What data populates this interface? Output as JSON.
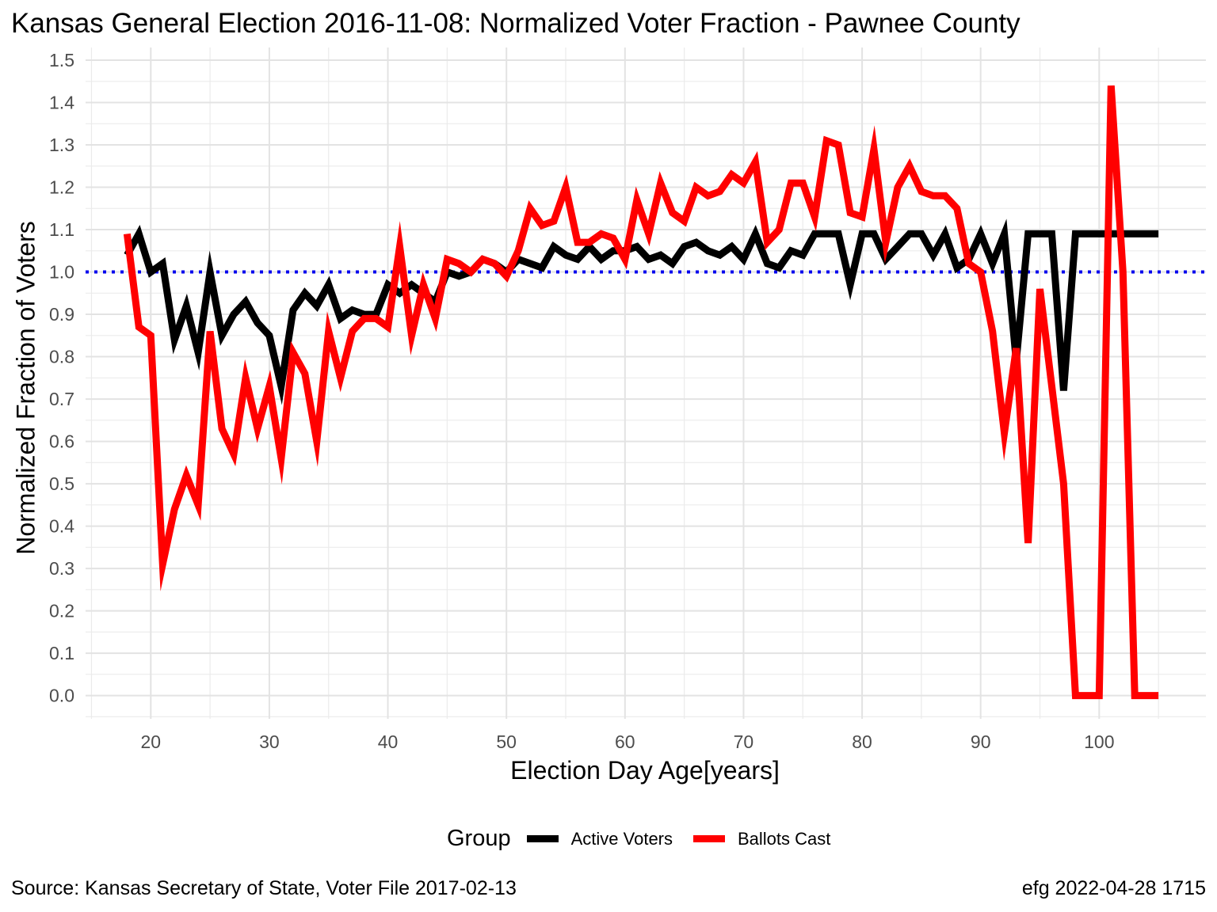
{
  "chart_data": {
    "type": "line",
    "title": "Kansas General Election 2016-11-08:  Normalized Voter Fraction - Pawnee County",
    "xlabel": "Election Day Age[years]",
    "ylabel": "Normalized Fraction of Voters",
    "xlim": [
      14.5,
      109
    ],
    "ylim": [
      -0.055,
      1.53
    ],
    "x_ticks": [
      "20",
      "30",
      "40",
      "50",
      "60",
      "70",
      "80",
      "90",
      "100"
    ],
    "y_ticks": [
      "0.0",
      "0.1",
      "0.2",
      "0.3",
      "0.4",
      "0.5",
      "0.6",
      "0.7",
      "0.8",
      "0.9",
      "1.0",
      "1.1",
      "1.2",
      "1.3",
      "1.4",
      "1.5"
    ],
    "grid": true,
    "reference_line": {
      "y": 1.0,
      "style": "dotted",
      "color": "#0000ee"
    },
    "legend": {
      "title": "Group",
      "position": "bottom"
    },
    "x": [
      18,
      19,
      20,
      21,
      22,
      23,
      24,
      25,
      26,
      27,
      28,
      29,
      30,
      31,
      32,
      33,
      34,
      35,
      36,
      37,
      38,
      39,
      40,
      41,
      42,
      43,
      44,
      45,
      46,
      47,
      48,
      49,
      50,
      51,
      52,
      53,
      54,
      55,
      56,
      57,
      58,
      59,
      60,
      61,
      62,
      63,
      64,
      65,
      66,
      67,
      68,
      69,
      70,
      71,
      72,
      73,
      74,
      75,
      76,
      77,
      78,
      79,
      80,
      81,
      82,
      83,
      84,
      85,
      86,
      87,
      88,
      89,
      90,
      91,
      92,
      93,
      94,
      95,
      96,
      97,
      98,
      99,
      100,
      101,
      102,
      103,
      104,
      105
    ],
    "series": [
      {
        "name": "Active Voters",
        "color": "#000000",
        "values": [
          1.04,
          1.09,
          1.0,
          1.02,
          0.84,
          0.92,
          0.81,
          1.0,
          0.85,
          0.9,
          0.93,
          0.88,
          0.85,
          0.73,
          0.91,
          0.95,
          0.92,
          0.97,
          0.89,
          0.91,
          0.9,
          0.9,
          0.97,
          0.95,
          0.97,
          0.95,
          0.93,
          1.0,
          0.99,
          1.0,
          1.03,
          1.02,
          1.0,
          1.03,
          1.02,
          1.01,
          1.06,
          1.04,
          1.03,
          1.06,
          1.03,
          1.05,
          1.05,
          1.06,
          1.03,
          1.04,
          1.02,
          1.06,
          1.07,
          1.05,
          1.04,
          1.06,
          1.03,
          1.09,
          1.02,
          1.01,
          1.05,
          1.04,
          1.09,
          1.09,
          1.09,
          0.97,
          1.09,
          1.09,
          1.03,
          1.06,
          1.09,
          1.09,
          1.04,
          1.09,
          1.01,
          1.03,
          1.09,
          1.02,
          1.09,
          0.79,
          1.09,
          1.09,
          1.09,
          0.72,
          1.09,
          1.09,
          1.09,
          1.09,
          1.09,
          1.09,
          1.09,
          1.09
        ]
      },
      {
        "name": "Ballots Cast",
        "color": "#ff0000",
        "values": [
          1.09,
          0.87,
          0.85,
          0.31,
          0.44,
          0.52,
          0.45,
          0.86,
          0.63,
          0.57,
          0.75,
          0.63,
          0.73,
          0.56,
          0.81,
          0.76,
          0.6,
          0.86,
          0.75,
          0.86,
          0.89,
          0.89,
          0.87,
          1.06,
          0.85,
          0.97,
          0.89,
          1.03,
          1.02,
          1.0,
          1.03,
          1.02,
          0.99,
          1.05,
          1.15,
          1.11,
          1.12,
          1.2,
          1.07,
          1.07,
          1.09,
          1.08,
          1.03,
          1.17,
          1.09,
          1.21,
          1.14,
          1.12,
          1.2,
          1.18,
          1.19,
          1.23,
          1.21,
          1.26,
          1.07,
          1.1,
          1.21,
          1.21,
          1.13,
          1.31,
          1.3,
          1.14,
          1.13,
          1.29,
          1.07,
          1.2,
          1.25,
          1.19,
          1.18,
          1.18,
          1.15,
          1.02,
          1.0,
          0.86,
          0.62,
          0.82,
          0.36,
          0.96,
          0.73,
          0.5,
          0.0,
          0.0,
          0.0,
          1.44,
          1.0,
          0.0,
          0.0,
          0.0
        ]
      }
    ]
  },
  "footer": {
    "source": "Source:  Kansas Secretary of State, Voter File  2017-02-13",
    "credit": "efg 2022-04-28 1715"
  }
}
